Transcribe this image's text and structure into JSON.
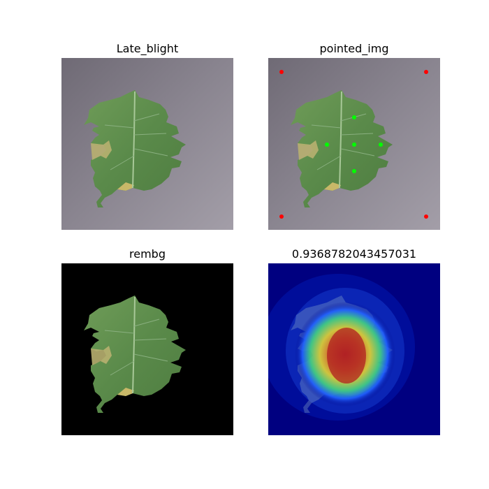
{
  "figure": {
    "panels": [
      {
        "id": "original",
        "title": "Late_blight"
      },
      {
        "id": "pointed",
        "title": "pointed_img"
      },
      {
        "id": "rembg",
        "title": "rembg"
      },
      {
        "id": "heatmap",
        "title": "0.9368782043457031"
      }
    ]
  },
  "markers": {
    "corner_color": "#ff0000",
    "leaf_point_color": "#00ff00"
  },
  "colors": {
    "background_gray": "#8a8590",
    "leaf_green": "#5a8a4a",
    "lesion_tan": "#b8b070",
    "heatmap_base": "#000080"
  }
}
